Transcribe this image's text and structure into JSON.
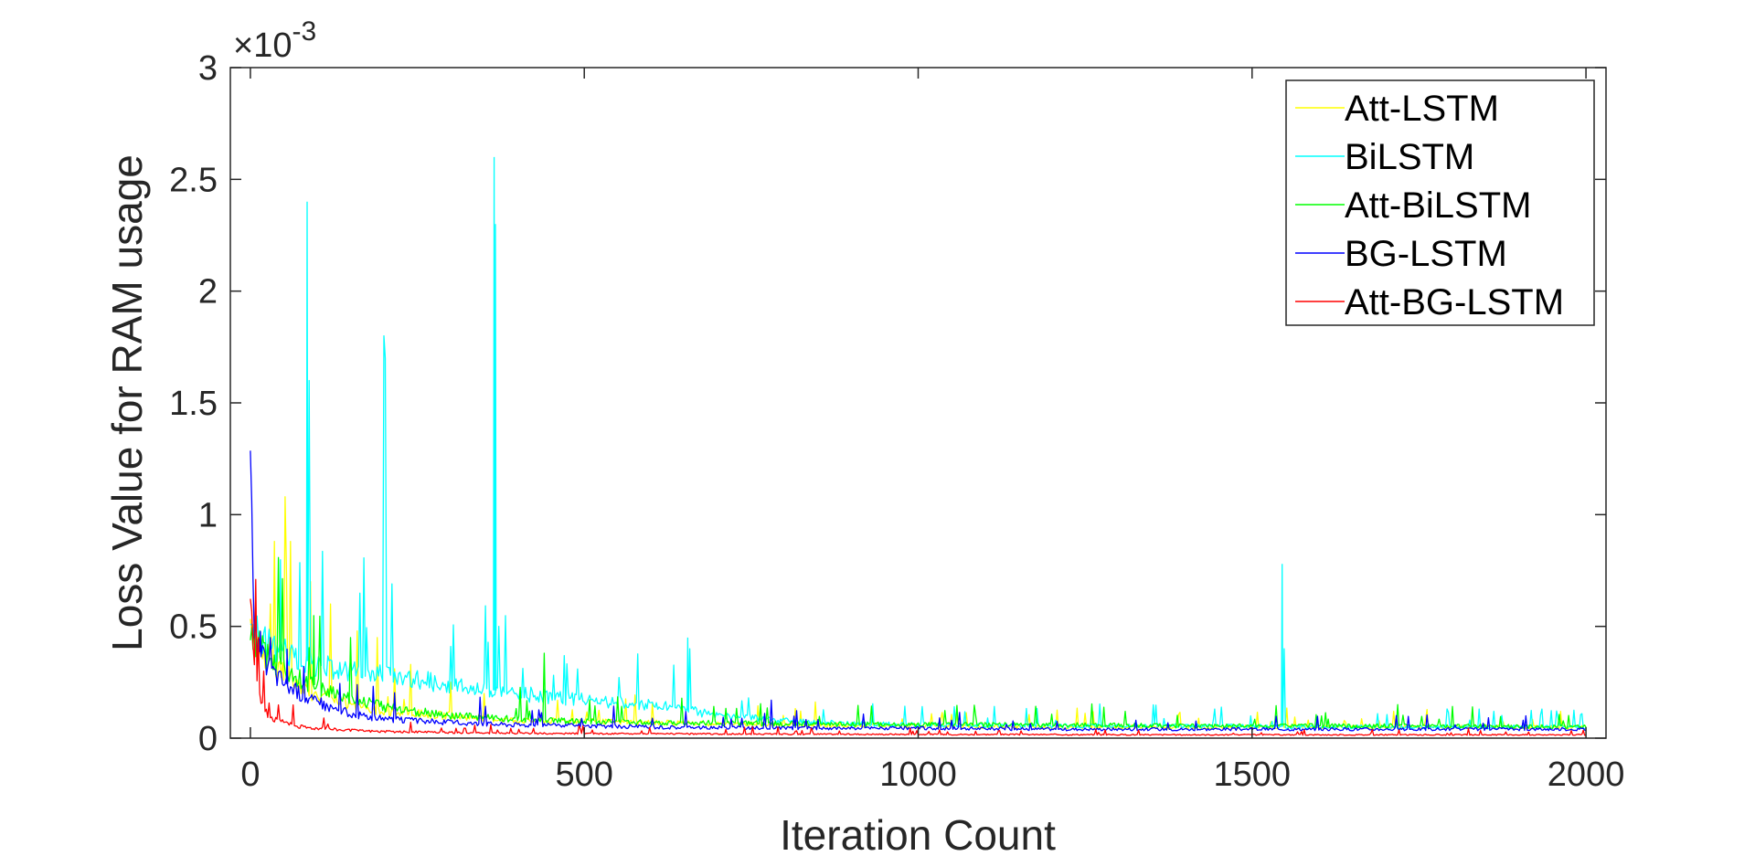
{
  "chart_data": {
    "type": "line",
    "title": "",
    "xlabel": "Iteration Count",
    "ylabel": "Loss Value for RAM usage",
    "xlim": [
      -30,
      2030
    ],
    "ylim": [
      0,
      0.003
    ],
    "xticks": [
      0,
      500,
      1000,
      1500,
      2000
    ],
    "xtick_labels": [
      "0",
      "500",
      "1000",
      "1500",
      "2000"
    ],
    "yticks": [
      0,
      0.0005,
      0.001,
      0.0015,
      0.002,
      0.0025,
      0.003
    ],
    "ytick_labels": [
      "0",
      "0.5",
      "1",
      "1.5",
      "2",
      "2.5",
      "3"
    ],
    "y_exponent_label": "×10",
    "y_exponent_power": "-3",
    "grid": false,
    "legend_position": "top-right",
    "series": [
      {
        "name": "Att-LSTM",
        "color": "#ffff00",
        "x": [
          0,
          5,
          10,
          20,
          40,
          60,
          80,
          100,
          150,
          200,
          300,
          400,
          500,
          600,
          800,
          1000,
          1200,
          1400,
          1600,
          1800,
          2000
        ],
        "y": [
          0.00055,
          0.0005,
          0.00045,
          0.00038,
          0.00031,
          0.00026,
          0.00022,
          0.00019,
          0.00015,
          0.00012,
          0.0001,
          8e-05,
          7.5e-05,
          7e-05,
          6e-05,
          5.5e-05,
          5e-05,
          5e-05,
          5e-05,
          5e-05,
          5e-05
        ],
        "spikes": [
          [
            30,
            0.0006
          ],
          [
            52,
            0.00108
          ],
          [
            60,
            0.00088
          ],
          [
            90,
            0.0007
          ],
          [
            120,
            0.0006
          ],
          [
            160,
            0.00048
          ],
          [
            190,
            0.00045
          ],
          [
            240,
            0.00033
          ],
          [
            300,
            0.00025
          ],
          [
            350,
            0.0002
          ]
        ]
      },
      {
        "name": "BiLSTM",
        "color": "#00ffff",
        "x": [
          0,
          5,
          10,
          20,
          40,
          60,
          80,
          100,
          150,
          200,
          250,
          300,
          350,
          400,
          500,
          600,
          650,
          700,
          800,
          900,
          1000,
          1200,
          1400,
          1600,
          1800,
          2000
        ],
        "y": [
          0.00055,
          0.0005,
          0.00047,
          0.00043,
          0.0004,
          0.00037,
          0.00035,
          0.00033,
          0.0003,
          0.00028,
          0.00026,
          0.00024,
          0.00022,
          0.0002,
          0.00017,
          0.00015,
          0.00013,
          0.0001,
          8e-05,
          6.5e-05,
          6e-05,
          5.5e-05,
          5.5e-05,
          5e-05,
          5e-05,
          5e-05
        ],
        "spikes": [
          [
            45,
            0.0008
          ],
          [
            85,
            0.0024
          ],
          [
            88,
            0.0016
          ],
          [
            200,
            0.0018
          ],
          [
            202,
            0.0017
          ],
          [
            365,
            0.0026
          ],
          [
            367,
            0.0023
          ],
          [
            372,
            0.0005
          ],
          [
            655,
            0.00045
          ],
          [
            658,
            0.0004
          ],
          [
            1545,
            0.00078
          ],
          [
            1548,
            0.0004
          ],
          [
            1840,
            0.00013
          ]
        ]
      },
      {
        "name": "Att-BiLSTM",
        "color": "#00ff00",
        "x": [
          0,
          5,
          10,
          20,
          40,
          60,
          80,
          100,
          150,
          200,
          300,
          400,
          500,
          600,
          800,
          1000,
          1200,
          1400,
          1600,
          1800,
          2000
        ],
        "y": [
          0.0005,
          0.00046,
          0.00043,
          0.00038,
          0.00033,
          0.00029,
          0.00026,
          0.00023,
          0.00018,
          0.00014,
          0.0001,
          8.5e-05,
          7.5e-05,
          7e-05,
          6.5e-05,
          6e-05,
          6e-05,
          5.5e-05,
          5.5e-05,
          5.5e-05,
          5e-05
        ],
        "spikes": [
          [
            95,
            0.00055
          ],
          [
            150,
            0.00045
          ],
          [
            440,
            0.00038
          ],
          [
            1310,
            0.00012
          ]
        ]
      },
      {
        "name": "BG-LSTM",
        "color": "#0000ff",
        "x": [
          0,
          3,
          6,
          10,
          20,
          40,
          60,
          80,
          100,
          150,
          200,
          300,
          400,
          500,
          600,
          800,
          1000,
          1200,
          1400,
          1600,
          1800,
          2000
        ],
        "y": [
          0.00155,
          0.0007,
          0.0005,
          0.00042,
          0.00035,
          0.00028,
          0.00023,
          0.00019,
          0.00016,
          0.00011,
          8.5e-05,
          7e-05,
          6e-05,
          5.5e-05,
          5e-05,
          4.5e-05,
          4.5e-05,
          4e-05,
          4e-05,
          4e-05,
          4e-05,
          4e-05
        ],
        "spikes": [
          [
            15,
            0.00048
          ],
          [
            30,
            0.00045
          ],
          [
            55,
            0.0004
          ],
          [
            80,
            0.00032
          ],
          [
            780,
            0.00017
          ],
          [
            1050,
            8e-05
          ]
        ]
      },
      {
        "name": "Att-BG-LSTM",
        "color": "#ff0000",
        "x": [
          0,
          2,
          5,
          10,
          15,
          20,
          30,
          40,
          60,
          80,
          100,
          150,
          200,
          300,
          400,
          500,
          600,
          800,
          1000,
          1200,
          1400,
          1600,
          1800,
          2000
        ],
        "y": [
          0.00055,
          0.0005,
          0.00035,
          0.00023,
          0.00017,
          0.00013,
          0.0001,
          8e-05,
          6e-05,
          5e-05,
          4.5e-05,
          3.5e-05,
          3e-05,
          2.5e-05,
          2.2e-05,
          2e-05,
          2e-05,
          1.8e-05,
          1.7e-05,
          1.6e-05,
          1.5e-05,
          1.5e-05,
          1.5e-05,
          1.5e-05
        ],
        "spikes": [
          [
            8,
            0.00071
          ],
          [
            12,
            0.00045
          ],
          [
            20,
            0.0003
          ],
          [
            320,
            4.5e-05
          ]
        ]
      }
    ]
  }
}
